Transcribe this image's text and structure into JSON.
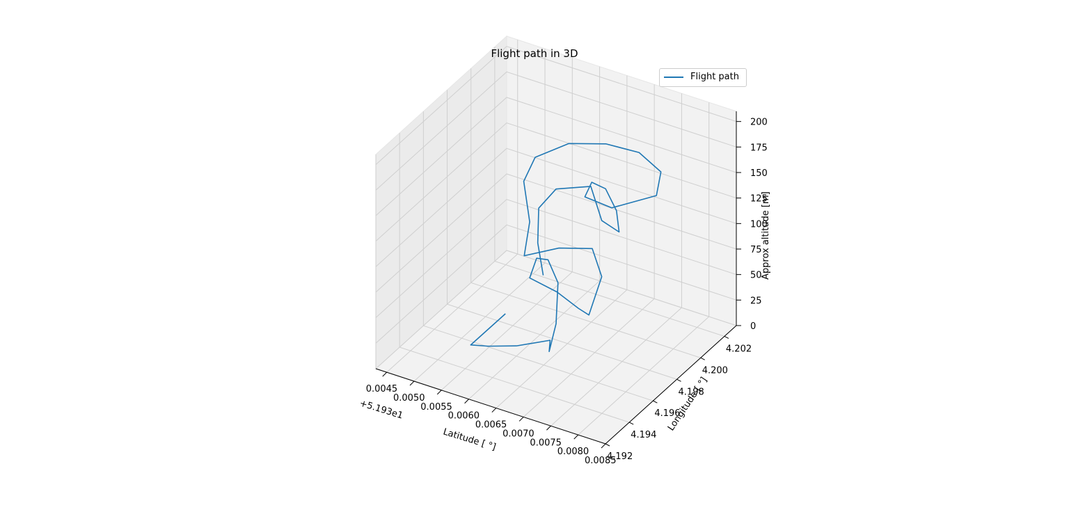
{
  "chart_data": {
    "type": "line",
    "projection": "3d",
    "title": "Flight path in 3D",
    "xlabel": "Latitude [$^\\circ$]",
    "ylabel": "Longitude [$^\\circ$]",
    "zlabel": "Approx altitude [$m$]",
    "x_offset_label": "+5.193e1",
    "xlim": [
      0.0043,
      0.0085
    ],
    "ylim": [
      4.192,
      4.203
    ],
    "zlim": [
      0,
      210
    ],
    "xticks": [
      "0.0045",
      "0.0050",
      "0.0055",
      "0.0060",
      "0.0065",
      "0.0070",
      "0.0075",
      "0.0080",
      "0.0085"
    ],
    "yticks": [
      "4.192",
      "4.194",
      "4.196",
      "4.198",
      "4.200",
      "4.202"
    ],
    "zticks": [
      "0",
      "25",
      "50",
      "75",
      "100",
      "125",
      "150",
      "175",
      "200"
    ],
    "grid": true,
    "legend_position": "top-right",
    "series": [
      {
        "name": "Flight path",
        "color": "#1f77b4",
        "x": [
          0.0058,
          0.0056,
          0.0057,
          0.006,
          0.0064,
          0.0066,
          0.0064,
          0.006,
          0.0056,
          0.0055,
          0.0057,
          0.0062,
          0.0067,
          0.007,
          0.0068,
          0.0063,
          0.0058,
          0.0056,
          0.0057,
          0.0057,
          0.0058,
          0.0062,
          0.0067,
          0.0072,
          0.0076,
          0.0078,
          0.0072,
          0.0066,
          0.0064,
          0.0065,
          0.0067,
          0.0069,
          0.0068,
          0.0066,
          0.0064,
          0.0063,
          0.0065,
          0.0066
        ],
        "y": [
          4.196,
          4.194,
          4.195,
          4.196,
          4.197,
          4.196,
          4.1975,
          4.1995,
          4.2005,
          4.2,
          4.1985,
          4.1985,
          4.198,
          4.1975,
          4.1995,
          4.201,
          4.2005,
          4.1985,
          4.1985,
          4.198,
          4.1985,
          4.1995,
          4.2003,
          4.2008,
          4.2008,
          4.1995,
          4.1985,
          4.199,
          4.2005,
          4.2012,
          4.2012,
          4.2005,
          4.1995,
          4.1995,
          4.1975,
          4.1965,
          4.1955,
          4.1955
        ],
        "z": [
          38,
          25,
          15,
          10,
          12,
          15,
          23,
          35,
          40,
          45,
          45,
          40,
          38,
          42,
          55,
          58,
          55,
          65,
          100,
          145,
          165,
          175,
          175,
          170,
          158,
          152,
          140,
          135,
          130,
          118,
          100,
          90,
          110,
          140,
          155,
          145,
          125,
          95
        ]
      }
    ]
  }
}
